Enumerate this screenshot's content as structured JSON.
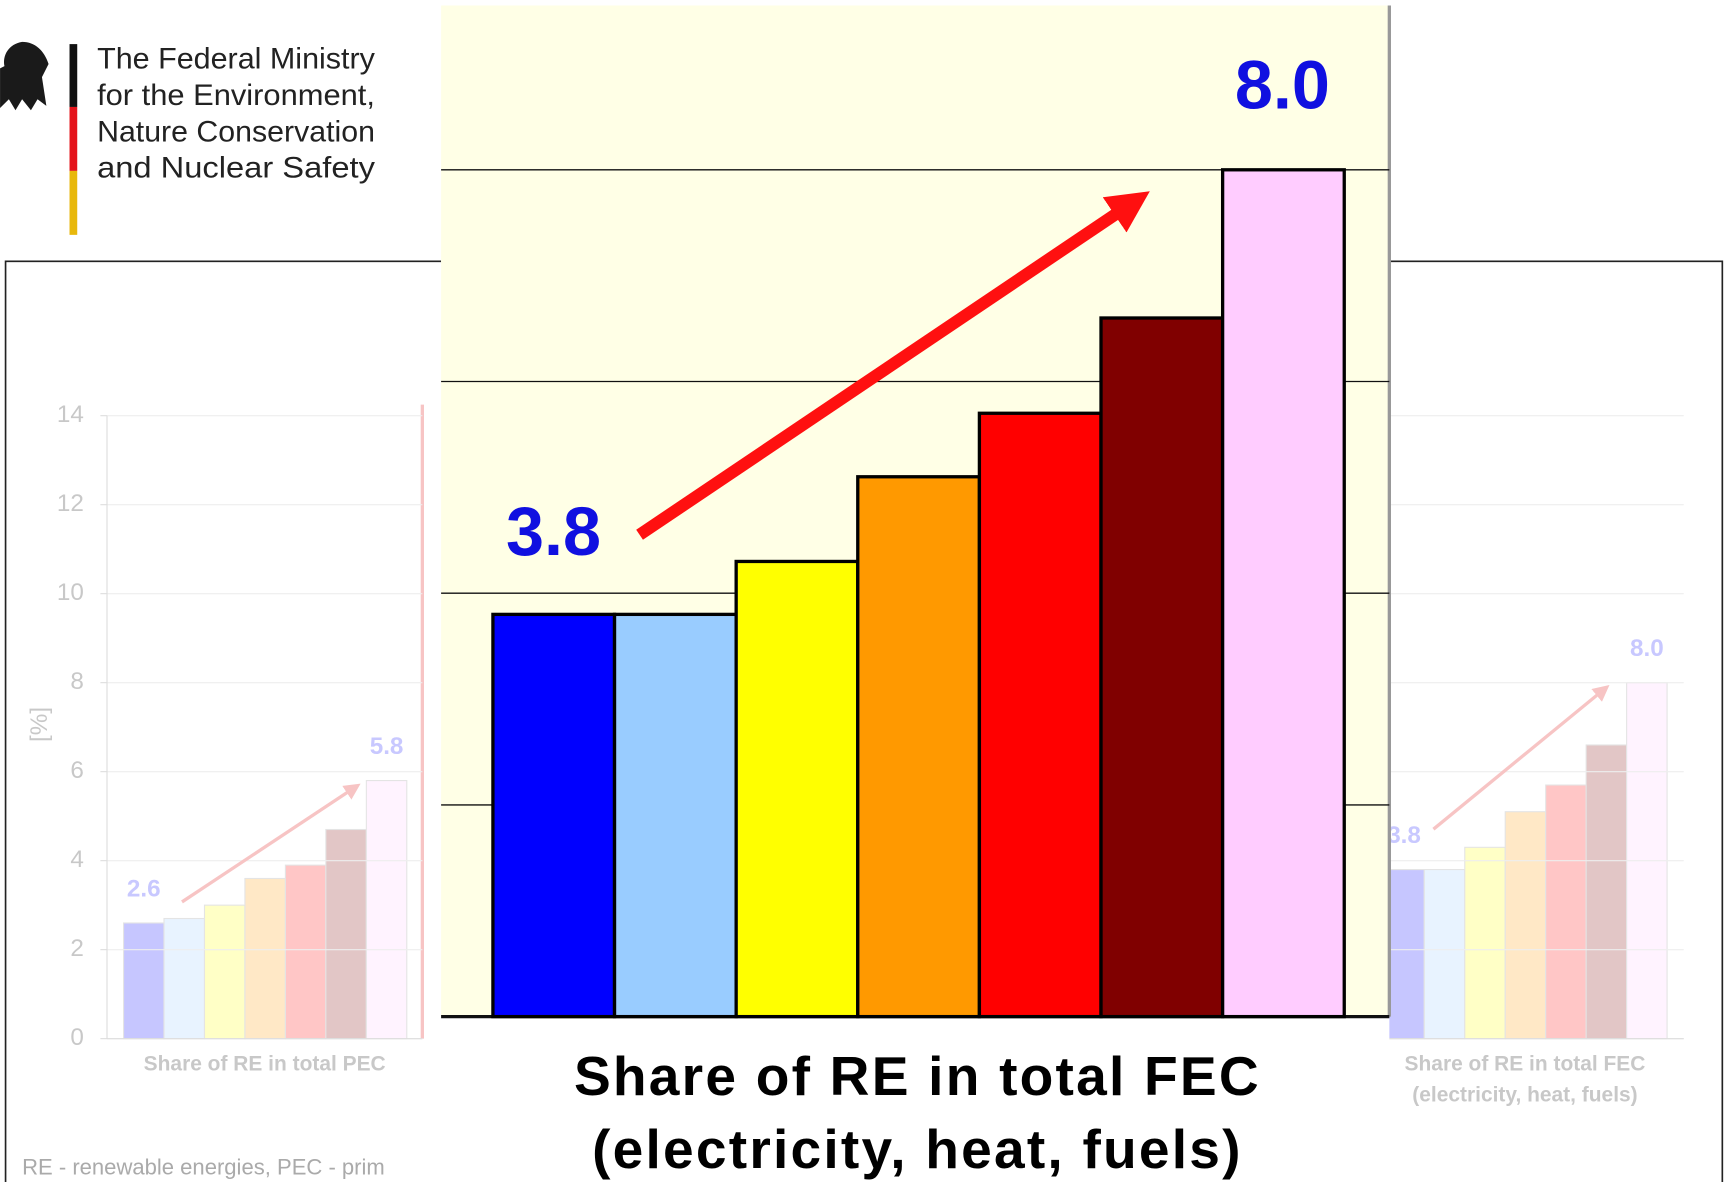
{
  "header": {
    "lines": [
      "The Federal Ministry",
      "for the Environment,",
      "Nature Conservation",
      "and Nuclear Safety"
    ]
  },
  "footnote": "RE - renewable energies, PEC - prim",
  "chart_data": [
    {
      "type": "bar",
      "title": [
        "Share of RE in total PEC"
      ],
      "ylabel": "[%]",
      "values": [
        2.6,
        2.7,
        3.0,
        3.6,
        3.9,
        4.7,
        5.8
      ],
      "value_labels": [
        "2.6",
        null,
        null,
        null,
        null,
        null,
        "5.8"
      ],
      "colors": [
        "#0000ff",
        "#99ccff",
        "#ffff00",
        "#ff9900",
        "#ff0000",
        "#800000",
        "#ffccff"
      ],
      "ylim": [
        0,
        14
      ],
      "yticks": [
        0,
        2,
        4,
        6,
        8,
        10,
        12,
        14
      ],
      "grid": true
    },
    {
      "type": "bar",
      "title": [
        "Share of RE in total FEC",
        "(electricity, heat, fuels)"
      ],
      "values": [
        3.8,
        3.8,
        4.3,
        5.1,
        5.7,
        6.6,
        8.0
      ],
      "value_labels": [
        "3.8",
        null,
        null,
        null,
        null,
        null,
        "8.0"
      ],
      "colors": [
        "#0000ff",
        "#99ccff",
        "#ffff00",
        "#ff9900",
        "#ff0000",
        "#800000",
        "#ffccff"
      ],
      "ylim": [
        0,
        14
      ],
      "yticks": [
        0,
        2,
        4,
        6,
        8,
        10,
        12,
        14
      ],
      "grid": true
    }
  ]
}
